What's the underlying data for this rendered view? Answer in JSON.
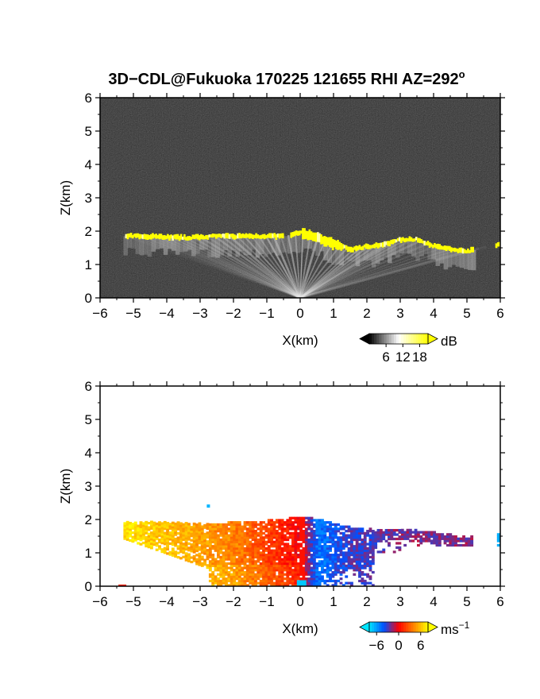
{
  "figure": {
    "title_main": "3D−CDL@Fukuoka 170225 121655 RHI AZ=292",
    "title_sup": "o"
  },
  "chart_data": [
    {
      "type": "heatmap",
      "name": "reflectivity",
      "xlabel": "X(km)",
      "ylabel": "Z(km)",
      "xlim": [
        -6,
        6
      ],
      "ylim": [
        0,
        6
      ],
      "xticks": [
        "−6",
        "−5",
        "−4",
        "−3",
        "−2",
        "−1",
        "0",
        "1",
        "2",
        "3",
        "4",
        "5",
        "6"
      ],
      "yticks": [
        "0",
        "1",
        "2",
        "3",
        "4",
        "5",
        "6"
      ],
      "background": "#2a2a2a",
      "cloud_base_km": [
        {
          "x": -5.2,
          "z": 1.85
        },
        {
          "x": -4.5,
          "z": 1.85
        },
        {
          "x": -3.5,
          "z": 1.8
        },
        {
          "x": -2.5,
          "z": 1.85
        },
        {
          "x": -1.5,
          "z": 1.85
        },
        {
          "x": -0.5,
          "z": 1.85
        },
        {
          "x": 0.0,
          "z": 1.95
        },
        {
          "x": 0.5,
          "z": 1.8
        },
        {
          "x": 1.0,
          "z": 1.6
        },
        {
          "x": 1.5,
          "z": 1.45
        },
        {
          "x": 2.0,
          "z": 1.55
        },
        {
          "x": 2.5,
          "z": 1.6
        },
        {
          "x": 3.0,
          "z": 1.75
        },
        {
          "x": 3.5,
          "z": 1.75
        },
        {
          "x": 4.0,
          "z": 1.55
        },
        {
          "x": 4.5,
          "z": 1.45
        },
        {
          "x": 5.0,
          "z": 1.4
        },
        {
          "x": 5.9,
          "z": 1.6
        }
      ],
      "colorbar": {
        "unit": "dB",
        "ticks": [
          "6",
          "12",
          "18"
        ],
        "tick_values": [
          6,
          12,
          18
        ],
        "range": [
          0,
          21
        ],
        "colors": [
          "#000000",
          "#ffffff",
          "#ffff00"
        ]
      }
    },
    {
      "type": "heatmap",
      "name": "doppler_velocity",
      "xlabel": "X(km)",
      "ylabel": "Z(km)",
      "xlim": [
        -6,
        6
      ],
      "ylim": [
        0,
        6
      ],
      "xticks": [
        "−6",
        "−5",
        "−4",
        "−3",
        "−2",
        "−1",
        "0",
        "1",
        "2",
        "3",
        "4",
        "5",
        "6"
      ],
      "yticks": [
        "0",
        "1",
        "2",
        "3",
        "4",
        "5",
        "6"
      ],
      "velocity_field": [
        {
          "x": -5.2,
          "z_top": 1.9,
          "v": 7
        },
        {
          "x": -4.0,
          "z_top": 1.9,
          "v": 6
        },
        {
          "x": -3.0,
          "z_top": 1.85,
          "v": 5
        },
        {
          "x": -2.0,
          "z_top": 1.9,
          "v": 4
        },
        {
          "x": -1.0,
          "z_top": 1.95,
          "v": 2
        },
        {
          "x": 0.0,
          "z_top": 2.05,
          "v": 0
        },
        {
          "x": 0.5,
          "z_top": 2.0,
          "v": -5
        },
        {
          "x": 1.0,
          "z_top": 1.85,
          "v": -4
        },
        {
          "x": 1.5,
          "z_top": 1.75,
          "v": -3
        },
        {
          "x": 2.0,
          "z_top": 1.7,
          "v": -3
        },
        {
          "x": 3.0,
          "z_top": 1.7,
          "v": -2
        },
        {
          "x": 4.0,
          "z_top": 1.6,
          "v": -2
        },
        {
          "x": 5.0,
          "z_top": 1.45,
          "v": -2
        },
        {
          "x": 5.9,
          "z_top": 1.6,
          "v": -3
        }
      ],
      "colorbar": {
        "unit": "ms",
        "unit_sup": "−1",
        "ticks": [
          "−6",
          "0",
          "6"
        ],
        "tick_values": [
          -6,
          0,
          6
        ],
        "range": [
          -8,
          8
        ],
        "colors": [
          "#00e5ff",
          "#0050ff",
          "#ff0000",
          "#ff8000",
          "#ffff00"
        ]
      }
    }
  ]
}
